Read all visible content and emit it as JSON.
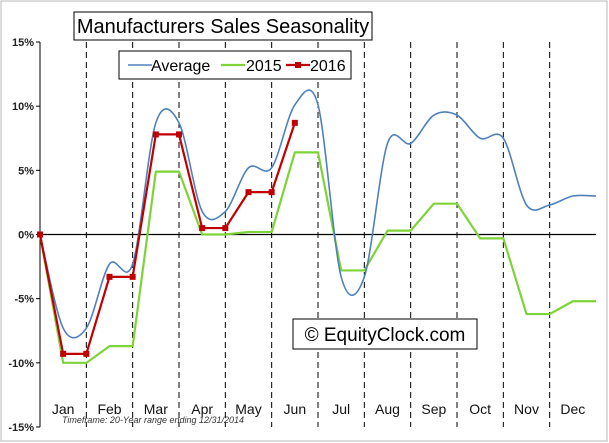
{
  "chart_data": {
    "type": "line",
    "title": "Manufacturers Sales Seasonality",
    "xlabel": "",
    "ylabel": "",
    "categories": [
      "Jan",
      "Feb",
      "Mar",
      "Apr",
      "May",
      "Jun",
      "Jul",
      "Aug",
      "Sep",
      "Oct",
      "Nov",
      "Dec"
    ],
    "ylim": [
      -15,
      15
    ],
    "yticks": [
      -15,
      -10,
      -5,
      0,
      5,
      10,
      15
    ],
    "ytick_labels": [
      "-15%",
      "-10%",
      "-5%",
      "0%",
      "5%",
      "10%",
      "15%"
    ],
    "xlim": [
      0,
      12
    ],
    "grid": "vertical dashed at month boundaries",
    "legend_position": "top-center",
    "series": [
      {
        "name": "Average",
        "color": "#4f81bd",
        "smooth": true,
        "markers": false,
        "x": [
          0,
          0.5,
          1.0,
          1.5,
          2.0,
          2.5,
          3.0,
          3.5,
          4.0,
          4.5,
          5.0,
          5.5,
          6.0,
          6.5,
          7.0,
          7.5,
          8.0,
          8.5,
          9.0,
          9.5,
          10.0,
          10.5,
          11.0,
          11.5,
          12.0
        ],
        "values": [
          0,
          -7.3,
          -7.3,
          -2.3,
          -2.3,
          8.7,
          8.7,
          1.8,
          1.8,
          5.2,
          5.2,
          10.1,
          10.1,
          -3.3,
          -3.3,
          7.1,
          7.1,
          9.3,
          9.3,
          7.5,
          7.5,
          2.3,
          2.3,
          3.0,
          3.0
        ]
      },
      {
        "name": "2015",
        "color": "#7dd337",
        "smooth": false,
        "markers": false,
        "x": [
          0,
          0.5,
          1.0,
          1.5,
          2.0,
          2.5,
          3.0,
          3.5,
          4.0,
          4.5,
          5.0,
          5.5,
          6.0,
          6.5,
          7.0,
          7.5,
          8.0,
          8.5,
          9.0,
          9.5,
          10.0,
          10.5,
          11.0,
          11.5,
          12.0
        ],
        "values": [
          0,
          -10.0,
          -10.0,
          -8.7,
          -8.7,
          4.9,
          4.9,
          0.0,
          0.0,
          0.2,
          0.2,
          6.4,
          6.4,
          -2.8,
          -2.8,
          0.3,
          0.3,
          2.4,
          2.4,
          -0.3,
          -0.3,
          -6.2,
          -6.2,
          -5.2,
          -5.2
        ]
      },
      {
        "name": "2016",
        "color": "#c00000",
        "smooth": false,
        "markers": true,
        "x": [
          0,
          0.5,
          1.0,
          1.5,
          2.0,
          2.5,
          3.0,
          3.5,
          4.0,
          4.5,
          5.0,
          5.5
        ],
        "values": [
          0,
          -9.3,
          -9.3,
          -3.3,
          -3.3,
          7.8,
          7.8,
          0.5,
          0.5,
          3.3,
          3.3,
          8.7
        ]
      }
    ],
    "watermark": "© EquityClock.com",
    "footnote": "Timeframe: 20-Year range ending 12/31/2014"
  }
}
